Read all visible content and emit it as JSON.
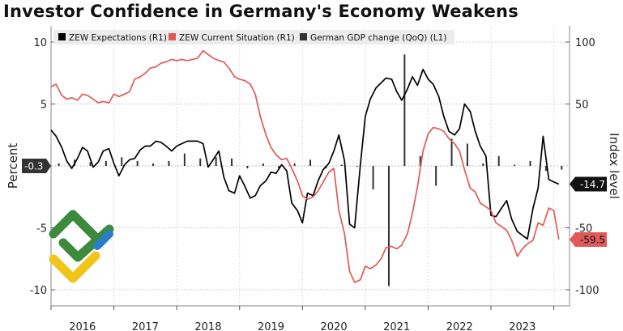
{
  "chart_data": {
    "type": "line",
    "title": "Investor Confidence in Germany's Economy Weakens",
    "ylabel_left": "Percent",
    "ylabel_right": "Index level",
    "ylim_left": [
      -11,
      11
    ],
    "ylim_right": [
      -110,
      110
    ],
    "xlim": [
      2015.0,
      2023.25
    ],
    "left_ticks": [
      10,
      5,
      -5,
      -10
    ],
    "right_ticks": [
      100,
      50,
      -50,
      -100
    ],
    "x_ticks": [
      {
        "label": "2016",
        "x": 2015.5
      },
      {
        "label": "2017",
        "x": 2016.5
      },
      {
        "label": "2018",
        "x": 2017.5
      },
      {
        "label": "2019",
        "x": 2018.5
      },
      {
        "label": "2020",
        "x": 2019.5
      },
      {
        "label": "2021",
        "x": 2020.5
      },
      {
        "label": "2022",
        "x": 2021.5
      },
      {
        "label": "2023",
        "x": 2022.5
      }
    ],
    "year_boundaries": [
      2015.0,
      2016.0,
      2017.0,
      2018.0,
      2019.0,
      2020.0,
      2021.0,
      2022.0,
      2023.0
    ],
    "legend_position": "top-left",
    "grid": true,
    "zero_label": "-0.3",
    "series": [
      {
        "name": "ZEW Expectations (R1)",
        "kind": "line",
        "axis": "right",
        "color": "#000000",
        "end_label": "-14.7",
        "points": [
          [
            2015.0,
            29
          ],
          [
            2015.08,
            24
          ],
          [
            2015.17,
            15
          ],
          [
            2015.25,
            4
          ],
          [
            2015.33,
            -2
          ],
          [
            2015.42,
            6
          ],
          [
            2015.5,
            15
          ],
          [
            2015.58,
            12
          ],
          [
            2015.67,
            -1
          ],
          [
            2015.75,
            3
          ],
          [
            2015.83,
            12
          ],
          [
            2015.92,
            14
          ],
          [
            2016.0,
            2
          ],
          [
            2016.08,
            -8
          ],
          [
            2016.17,
            1
          ],
          [
            2016.25,
            5
          ],
          [
            2016.33,
            6
          ],
          [
            2016.42,
            13
          ],
          [
            2016.5,
            16
          ],
          [
            2016.58,
            16
          ],
          [
            2016.67,
            20
          ],
          [
            2016.75,
            19
          ],
          [
            2016.83,
            16
          ],
          [
            2016.92,
            12
          ],
          [
            2017.0,
            16
          ],
          [
            2017.08,
            18
          ],
          [
            2017.17,
            20
          ],
          [
            2017.25,
            20
          ],
          [
            2017.33,
            20
          ],
          [
            2017.42,
            18
          ],
          [
            2017.5,
            -1
          ],
          [
            2017.58,
            5
          ],
          [
            2017.67,
            12
          ],
          [
            2017.75,
            -9
          ],
          [
            2017.83,
            -20
          ],
          [
            2017.92,
            -22
          ],
          [
            2018.0,
            -8
          ],
          [
            2018.08,
            -16
          ],
          [
            2018.17,
            -26
          ],
          [
            2018.25,
            -24
          ],
          [
            2018.33,
            -16
          ],
          [
            2018.42,
            -12
          ],
          [
            2018.5,
            -5
          ],
          [
            2018.58,
            -6
          ],
          [
            2018.67,
            1
          ],
          [
            2018.75,
            -4
          ],
          [
            2018.83,
            -30
          ],
          [
            2018.92,
            -36
          ],
          [
            2019.0,
            -46
          ],
          [
            2019.08,
            -22
          ],
          [
            2019.17,
            -24
          ],
          [
            2019.25,
            -12
          ],
          [
            2019.33,
            -3
          ],
          [
            2019.42,
            2
          ],
          [
            2019.5,
            12
          ],
          [
            2019.58,
            25
          ],
          [
            2019.67,
            4
          ],
          [
            2019.75,
            -47
          ],
          [
            2019.83,
            -50
          ],
          [
            2019.92,
            0
          ],
          [
            2020.0,
            40
          ],
          [
            2020.08,
            54
          ],
          [
            2020.17,
            63
          ],
          [
            2020.25,
            67
          ],
          [
            2020.33,
            71
          ],
          [
            2020.42,
            70
          ],
          [
            2020.5,
            60
          ],
          [
            2020.58,
            53
          ],
          [
            2020.67,
            62
          ],
          [
            2020.75,
            72
          ],
          [
            2020.83,
            65
          ],
          [
            2020.92,
            78
          ],
          [
            2021.0,
            70
          ],
          [
            2021.08,
            66
          ],
          [
            2021.17,
            56
          ],
          [
            2021.25,
            40
          ],
          [
            2021.33,
            28
          ],
          [
            2021.42,
            25
          ],
          [
            2021.5,
            30
          ],
          [
            2021.58,
            50
          ],
          [
            2021.67,
            44
          ],
          [
            2021.75,
            28
          ],
          [
            2021.83,
            16
          ],
          [
            2021.92,
            8
          ],
          [
            2022.0,
            -40
          ],
          [
            2022.08,
            -41
          ],
          [
            2022.17,
            -34
          ],
          [
            2022.25,
            -28
          ],
          [
            2022.33,
            -43
          ],
          [
            2022.42,
            -53
          ],
          [
            2022.5,
            -56
          ],
          [
            2022.58,
            -59
          ],
          [
            2022.67,
            -34
          ],
          [
            2022.75,
            -18
          ],
          [
            2022.83,
            24
          ],
          [
            2022.92,
            -11
          ],
          [
            2023.0,
            -13
          ],
          [
            2023.08,
            -14.7
          ]
        ]
      },
      {
        "name": "ZEW Current Situation (R1)",
        "kind": "line",
        "axis": "right",
        "color": "#e05a5a",
        "end_label": "-59.5",
        "points": [
          [
            2015.0,
            64
          ],
          [
            2015.08,
            66
          ],
          [
            2015.17,
            57
          ],
          [
            2015.25,
            54
          ],
          [
            2015.33,
            55
          ],
          [
            2015.42,
            53
          ],
          [
            2015.5,
            58
          ],
          [
            2015.58,
            57
          ],
          [
            2015.67,
            54
          ],
          [
            2015.75,
            51
          ],
          [
            2015.83,
            52
          ],
          [
            2015.92,
            51
          ],
          [
            2016.0,
            58
          ],
          [
            2016.08,
            56
          ],
          [
            2016.17,
            58
          ],
          [
            2016.25,
            60
          ],
          [
            2016.33,
            70
          ],
          [
            2016.42,
            72
          ],
          [
            2016.5,
            75
          ],
          [
            2016.58,
            79
          ],
          [
            2016.67,
            80
          ],
          [
            2016.75,
            83
          ],
          [
            2016.83,
            84
          ],
          [
            2016.92,
            86
          ],
          [
            2017.0,
            85
          ],
          [
            2017.08,
            86
          ],
          [
            2017.17,
            85
          ],
          [
            2017.25,
            86
          ],
          [
            2017.33,
            87
          ],
          [
            2017.42,
            93
          ],
          [
            2017.5,
            90
          ],
          [
            2017.58,
            87
          ],
          [
            2017.67,
            85
          ],
          [
            2017.75,
            84
          ],
          [
            2017.83,
            79
          ],
          [
            2017.92,
            72
          ],
          [
            2018.0,
            70
          ],
          [
            2018.08,
            69
          ],
          [
            2018.17,
            66
          ],
          [
            2018.25,
            58
          ],
          [
            2018.33,
            40
          ],
          [
            2018.42,
            25
          ],
          [
            2018.5,
            15
          ],
          [
            2018.58,
            9
          ],
          [
            2018.67,
            5
          ],
          [
            2018.75,
            6
          ],
          [
            2018.83,
            -2
          ],
          [
            2018.92,
            -12
          ],
          [
            2019.0,
            -24
          ],
          [
            2019.08,
            -27
          ],
          [
            2019.17,
            -25
          ],
          [
            2019.25,
            -20
          ],
          [
            2019.33,
            -13
          ],
          [
            2019.42,
            -5
          ],
          [
            2019.5,
            -2
          ],
          [
            2019.58,
            -36
          ],
          [
            2019.67,
            -55
          ],
          [
            2019.75,
            -85
          ],
          [
            2019.83,
            -94
          ],
          [
            2019.92,
            -92
          ],
          [
            2020.0,
            -81
          ],
          [
            2020.08,
            -83
          ],
          [
            2020.17,
            -80
          ],
          [
            2020.25,
            -75
          ],
          [
            2020.33,
            -66
          ],
          [
            2020.42,
            -65
          ],
          [
            2020.5,
            -67
          ],
          [
            2020.58,
            -64
          ],
          [
            2020.67,
            -55
          ],
          [
            2020.75,
            -38
          ],
          [
            2020.83,
            -17
          ],
          [
            2020.92,
            12
          ],
          [
            2021.0,
            26
          ],
          [
            2021.08,
            31
          ],
          [
            2021.17,
            30
          ],
          [
            2021.25,
            28
          ],
          [
            2021.33,
            22
          ],
          [
            2021.42,
            18
          ],
          [
            2021.5,
            12
          ],
          [
            2021.58,
            -3
          ],
          [
            2021.67,
            -18
          ],
          [
            2021.75,
            -21
          ],
          [
            2021.83,
            -30
          ],
          [
            2021.92,
            -33
          ],
          [
            2022.0,
            -36
          ],
          [
            2022.08,
            -46
          ],
          [
            2022.17,
            -49
          ],
          [
            2022.25,
            -52
          ],
          [
            2022.33,
            -60
          ],
          [
            2022.42,
            -73
          ],
          [
            2022.5,
            -67
          ],
          [
            2022.58,
            -63
          ],
          [
            2022.67,
            -60
          ],
          [
            2022.75,
            -46
          ],
          [
            2022.83,
            -48
          ],
          [
            2022.92,
            -34
          ],
          [
            2023.0,
            -36
          ],
          [
            2023.08,
            -59.5
          ]
        ]
      },
      {
        "name": "German GDP change (QoQ) (L1)",
        "kind": "bar",
        "axis": "left",
        "color": "#333333",
        "points": [
          [
            2015.125,
            0.2
          ],
          [
            2015.375,
            0.5
          ],
          [
            2015.625,
            0.3
          ],
          [
            2015.875,
            0.4
          ],
          [
            2016.125,
            0.7
          ],
          [
            2016.375,
            0.4
          ],
          [
            2016.625,
            0.2
          ],
          [
            2016.875,
            0.4
          ],
          [
            2017.125,
            1.0
          ],
          [
            2017.375,
            0.6
          ],
          [
            2017.625,
            0.7
          ],
          [
            2017.875,
            0.6
          ],
          [
            2018.125,
            -0.2
          ],
          [
            2018.375,
            0.2
          ],
          [
            2018.625,
            -0.2
          ],
          [
            2018.875,
            0.2
          ],
          [
            2019.125,
            0.5
          ],
          [
            2019.375,
            -0.2
          ],
          [
            2019.625,
            0.1
          ],
          [
            2019.875,
            0.0
          ],
          [
            2020.125,
            -1.9
          ],
          [
            2020.375,
            -9.7
          ],
          [
            2020.625,
            9.0
          ],
          [
            2020.875,
            0.8
          ],
          [
            2021.125,
            -1.6
          ],
          [
            2021.375,
            2.2
          ],
          [
            2021.625,
            1.8
          ],
          [
            2021.875,
            0.2
          ],
          [
            2022.125,
            0.8
          ],
          [
            2022.375,
            0.1
          ],
          [
            2022.625,
            0.4
          ],
          [
            2022.875,
            -0.4
          ],
          [
            2023.125,
            -0.3
          ]
        ]
      }
    ]
  }
}
